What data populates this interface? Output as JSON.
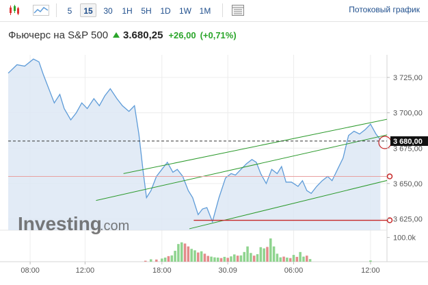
{
  "toolbar": {
    "candles_icon": "candlestick-icon",
    "area_icon": "area-chart-icon",
    "timeframes": [
      "5",
      "15",
      "30",
      "1H",
      "5H",
      "1D",
      "1W",
      "1M"
    ],
    "active_timeframe": "15",
    "table_icon": "table-view-icon",
    "stream_label": "Потоковый график"
  },
  "instrument": {
    "name": "Фьючерс на S&P 500",
    "price": "3.680,25",
    "change": "+26,00",
    "change_pct": "(+0,71%)"
  },
  "watermark": {
    "main": "Investing",
    "suffix": ".com"
  },
  "colors": {
    "up": "#2aa52a",
    "line": "#5d9bd8",
    "area": "#dde8f4",
    "trend": "#2c9a2c",
    "hline": "#c62828",
    "vol_up": "#8fd48f",
    "vol_down": "#e38b8b"
  },
  "chart_data": {
    "type": "area",
    "x_tick_labels": [
      "08:00",
      "12:00",
      "18:00",
      "30.09",
      "06:00",
      "12:00"
    ],
    "x_ticks": [
      2,
      7,
      14,
      20,
      26,
      33
    ],
    "xlim": [
      0,
      34.5
    ],
    "y_ticks": [
      3625,
      3650,
      3675,
      3700,
      3725
    ],
    "y_tick_labels": [
      "3 625,00",
      "3 650,00",
      "3 675,00",
      "3 700,00",
      "3 725,00"
    ],
    "ylim": [
      3617,
      3741
    ],
    "grid": true,
    "price": [
      [
        0.0,
        3728
      ],
      [
        0.8,
        3734
      ],
      [
        1.5,
        3733
      ],
      [
        2.3,
        3738
      ],
      [
        2.8,
        3736
      ],
      [
        3.2,
        3727
      ],
      [
        3.8,
        3715
      ],
      [
        4.2,
        3707
      ],
      [
        4.7,
        3713
      ],
      [
        5.1,
        3703
      ],
      [
        5.7,
        3695
      ],
      [
        6.2,
        3700
      ],
      [
        6.7,
        3707
      ],
      [
        7.2,
        3703
      ],
      [
        7.8,
        3710
      ],
      [
        8.3,
        3705
      ],
      [
        8.8,
        3712
      ],
      [
        9.3,
        3717
      ],
      [
        9.9,
        3710
      ],
      [
        10.4,
        3705
      ],
      [
        11.0,
        3701
      ],
      [
        11.5,
        3705
      ],
      [
        11.9,
        3685
      ],
      [
        12.3,
        3658
      ],
      [
        12.6,
        3640
      ],
      [
        13.0,
        3645
      ],
      [
        13.5,
        3655
      ],
      [
        14.0,
        3660
      ],
      [
        14.5,
        3665
      ],
      [
        15.0,
        3658
      ],
      [
        15.4,
        3660
      ],
      [
        15.9,
        3655
      ],
      [
        16.4,
        3645
      ],
      [
        16.8,
        3640
      ],
      [
        17.3,
        3628
      ],
      [
        17.7,
        3632
      ],
      [
        18.1,
        3633
      ],
      [
        18.6,
        3623
      ],
      [
        19.2,
        3640
      ],
      [
        19.8,
        3654
      ],
      [
        20.3,
        3657
      ],
      [
        20.7,
        3656
      ],
      [
        21.2,
        3660
      ],
      [
        21.7,
        3664
      ],
      [
        22.2,
        3667
      ],
      [
        22.6,
        3665
      ],
      [
        23.0,
        3657
      ],
      [
        23.5,
        3650
      ],
      [
        24.0,
        3660
      ],
      [
        24.5,
        3657
      ],
      [
        24.9,
        3662
      ],
      [
        25.3,
        3651
      ],
      [
        25.8,
        3651
      ],
      [
        26.4,
        3648
      ],
      [
        26.8,
        3652
      ],
      [
        27.2,
        3645
      ],
      [
        27.6,
        3643
      ],
      [
        28.1,
        3648
      ],
      [
        28.6,
        3652
      ],
      [
        29.1,
        3655
      ],
      [
        29.5,
        3652
      ],
      [
        30.0,
        3660
      ],
      [
        30.5,
        3668
      ],
      [
        31.0,
        3684
      ],
      [
        31.5,
        3687
      ],
      [
        32.0,
        3685
      ],
      [
        32.5,
        3688
      ],
      [
        33.0,
        3692
      ],
      [
        33.5,
        3685
      ],
      [
        33.9,
        3681
      ]
    ],
    "volume_ylim": [
      0,
      130000
    ],
    "volume_tick_label": "100.0k",
    "volume": [
      [
        12.5,
        4000,
        0
      ],
      [
        13.0,
        10000,
        1
      ],
      [
        13.5,
        9000,
        0
      ],
      [
        14.0,
        13000,
        1
      ],
      [
        14.3,
        17000,
        1
      ],
      [
        14.6,
        23000,
        0
      ],
      [
        14.9,
        26000,
        1
      ],
      [
        15.2,
        45000,
        1
      ],
      [
        15.5,
        73000,
        1
      ],
      [
        15.8,
        80000,
        1
      ],
      [
        16.1,
        75000,
        0
      ],
      [
        16.4,
        63000,
        0
      ],
      [
        16.7,
        53000,
        1
      ],
      [
        17.0,
        47000,
        1
      ],
      [
        17.3,
        38000,
        0
      ],
      [
        17.6,
        43000,
        1
      ],
      [
        17.9,
        33000,
        0
      ],
      [
        18.2,
        24000,
        0
      ],
      [
        18.5,
        21000,
        1
      ],
      [
        18.8,
        18000,
        1
      ],
      [
        19.1,
        17000,
        1
      ],
      [
        19.4,
        15000,
        0
      ],
      [
        19.7,
        20000,
        1
      ],
      [
        20.0,
        16000,
        0
      ],
      [
        20.3,
        22000,
        1
      ],
      [
        20.6,
        30000,
        1
      ],
      [
        20.9,
        25000,
        0
      ],
      [
        21.2,
        26000,
        1
      ],
      [
        21.5,
        40000,
        1
      ],
      [
        21.8,
        63000,
        1
      ],
      [
        22.1,
        36000,
        1
      ],
      [
        22.4,
        25000,
        0
      ],
      [
        22.7,
        31000,
        1
      ],
      [
        23.0,
        60000,
        1
      ],
      [
        23.3,
        55000,
        1
      ],
      [
        23.6,
        61000,
        0
      ],
      [
        23.9,
        96000,
        1
      ],
      [
        24.2,
        63000,
        1
      ],
      [
        24.5,
        33000,
        1
      ],
      [
        24.8,
        18000,
        1
      ],
      [
        25.1,
        21000,
        0
      ],
      [
        25.4,
        17000,
        1
      ],
      [
        25.7,
        15000,
        0
      ],
      [
        26.0,
        28000,
        1
      ],
      [
        26.3,
        20000,
        0
      ],
      [
        26.6,
        40000,
        1
      ],
      [
        26.9,
        21000,
        1
      ],
      [
        27.2,
        25000,
        0
      ],
      [
        27.5,
        11000,
        1
      ],
      [
        33.0,
        5000,
        1
      ]
    ],
    "trend_lines": [
      [
        [
          10.5,
          3657
        ],
        [
          35.5,
          3697
        ]
      ],
      [
        [
          8.0,
          3638
        ],
        [
          36.0,
          3687
        ]
      ],
      [
        [
          16.5,
          3618
        ],
        [
          36.0,
          3655
        ]
      ]
    ],
    "horizontal_levels": [
      {
        "y": 3680,
        "from": 0,
        "style": "dashed",
        "label": "3 680,00"
      },
      {
        "y": 3655,
        "from": 0,
        "style": "solid-thin"
      },
      {
        "y": 3624,
        "from": 16.9,
        "style": "solid"
      }
    ]
  }
}
